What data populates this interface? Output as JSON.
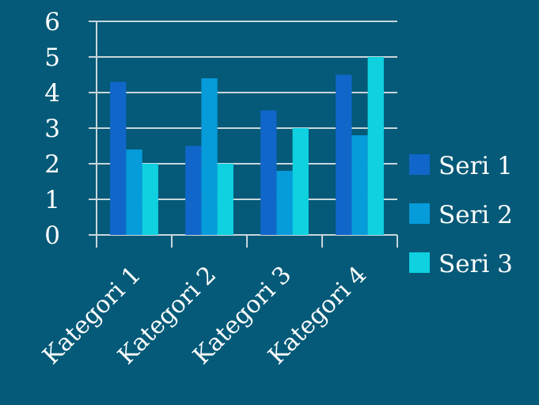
{
  "chart_data": {
    "type": "bar",
    "title": "",
    "xlabel": "",
    "ylabel": "",
    "categories": [
      "Kategori 1",
      "Kategori 2",
      "Kategori 3",
      "Kategori 4"
    ],
    "series": [
      {
        "name": "Seri 1",
        "values": [
          4.3,
          2.5,
          3.5,
          4.5
        ],
        "color": "#1167c9"
      },
      {
        "name": "Seri 2",
        "values": [
          2.4,
          4.4,
          1.8,
          2.8
        ],
        "color": "#069bd9"
      },
      {
        "name": "Seri 3",
        "values": [
          2,
          2,
          3,
          5
        ],
        "color": "#0fd1e0"
      }
    ],
    "ylim": [
      0,
      6
    ],
    "yticks": [
      "0",
      "1",
      "2",
      "3",
      "4",
      "5",
      "6"
    ],
    "grid": true,
    "legend_position": "right",
    "colors": {
      "background": "#045a78",
      "gridline": "#c9d6dc",
      "text": "#ffffff"
    }
  }
}
